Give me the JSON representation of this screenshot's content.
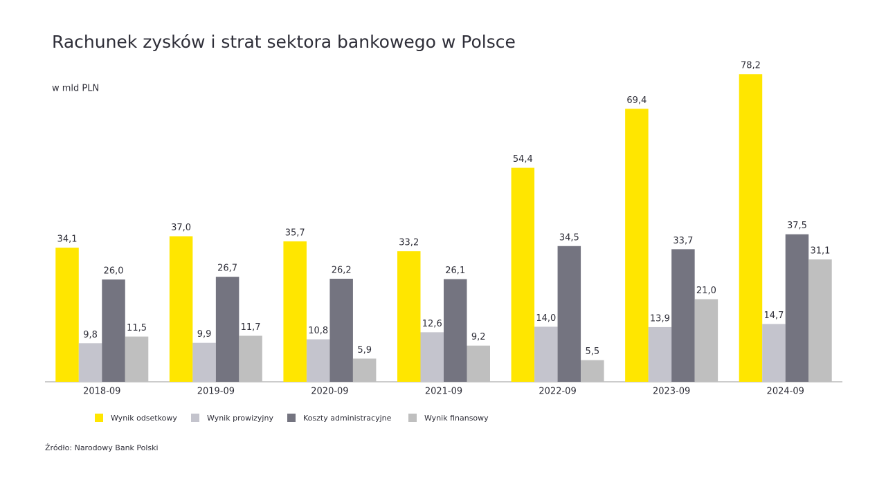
{
  "chart_data": {
    "type": "bar",
    "title": "Rachunek zysków i strat sektora bankowego w Polsce",
    "subtitle": "w mld PLN",
    "source": "Źródło: Narodowy Bank Polski",
    "categories": [
      "2018-09",
      "2019-09",
      "2020-09",
      "2021-09",
      "2022-09",
      "2023-09",
      "2024-09"
    ],
    "ylim": [
      0,
      80
    ],
    "series": [
      {
        "name": "Wynik odsetkowy",
        "color": "#ffe600",
        "values": [
          34.1,
          37.0,
          35.7,
          33.2,
          54.4,
          69.4,
          78.2
        ],
        "value_labels": [
          "34,1",
          "37,0",
          "35,7",
          "33,2",
          "54,4",
          "69,4",
          "78,2"
        ]
      },
      {
        "name": "Wynik prowizyjny",
        "color": "#c4c4cd",
        "values": [
          9.8,
          9.9,
          10.8,
          12.6,
          14.0,
          13.9,
          14.7
        ],
        "value_labels": [
          "9,8",
          "9,9",
          "10,8",
          "12,6",
          "14,0",
          "13,9",
          "14,7"
        ]
      },
      {
        "name": "Koszty administracyjne",
        "color": "#747480",
        "values": [
          26.0,
          26.7,
          26.2,
          26.1,
          34.5,
          33.7,
          37.5
        ],
        "value_labels": [
          "26,0",
          "26,7",
          "26,2",
          "26,1",
          "34,5",
          "33,7",
          "37,5"
        ]
      },
      {
        "name": "Wynik finansowy",
        "color": "#bfbfbf",
        "values": [
          11.5,
          11.7,
          5.9,
          9.2,
          5.5,
          21.0,
          31.1
        ],
        "value_labels": [
          "11,5",
          "11,7",
          "5,9",
          "9,2",
          "5,5",
          "21,0",
          "31,1"
        ]
      }
    ]
  }
}
